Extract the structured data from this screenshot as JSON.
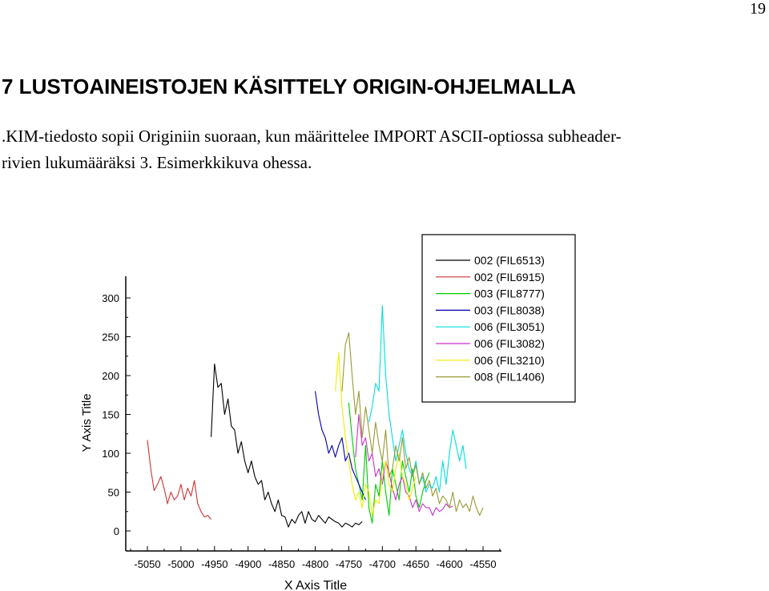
{
  "page": {
    "number": "19",
    "heading": "7  LUSTOAINEISTOJEN KÄSITTELY ORIGIN-OHJELMALLA",
    "paragraph_line1": ".KIM-tiedosto sopii Originiin suoraan, kun määrittelee IMPORT ASCII-optiossa subheader-",
    "paragraph_line2": "rivien lukumääräksi 3. Esimerkkikuva ohessa."
  },
  "chart_data": {
    "type": "line",
    "title": "",
    "xlabel": "X Axis Title",
    "ylabel": "Y Axis Title",
    "xlim": [
      -5065,
      -4540
    ],
    "ylim": [
      -20,
      335
    ],
    "x_ticks": [
      -5050,
      -5000,
      -4950,
      -4900,
      -4850,
      -4800,
      -4750,
      -4700,
      -4650,
      -4600,
      -4550
    ],
    "y_ticks": [
      0,
      50,
      100,
      150,
      200,
      250,
      300
    ],
    "legend_position": "top-right",
    "series": [
      {
        "name": "002 (FIL6513)",
        "color": "#000000",
        "x": [
          -4955,
          -4950,
          -4945,
          -4940,
          -4935,
          -4930,
          -4925,
          -4920,
          -4915,
          -4910,
          -4905,
          -4900,
          -4895,
          -4890,
          -4885,
          -4880,
          -4875,
          -4870,
          -4865,
          -4860,
          -4855,
          -4850,
          -4845,
          -4840,
          -4835,
          -4830,
          -4825,
          -4820,
          -4815,
          -4810,
          -4805,
          -4800,
          -4795,
          -4790,
          -4785,
          -4780,
          -4775,
          -4770,
          -4765,
          -4760,
          -4755,
          -4750,
          -4745,
          -4740,
          -4735,
          -4730
        ],
        "values": [
          121,
          215,
          185,
          190,
          150,
          170,
          135,
          130,
          100,
          115,
          90,
          75,
          90,
          70,
          60,
          65,
          40,
          50,
          35,
          25,
          40,
          20,
          18,
          5,
          15,
          10,
          20,
          25,
          10,
          25,
          15,
          12,
          20,
          15,
          10,
          18,
          15,
          12,
          10,
          5,
          10,
          8,
          5,
          10,
          8,
          12
        ]
      },
      {
        "name": "002 (FIL6915)",
        "color": "#cc3333",
        "x": [
          -5050,
          -5045,
          -5040,
          -5035,
          -5030,
          -5025,
          -5020,
          -5015,
          -5010,
          -5005,
          -5000,
          -4995,
          -4990,
          -4985,
          -4980,
          -4975,
          -4970,
          -4965,
          -4960,
          -4955
        ],
        "values": [
          117,
          80,
          52,
          60,
          70,
          55,
          35,
          50,
          40,
          45,
          60,
          40,
          55,
          45,
          65,
          35,
          25,
          18,
          20,
          15
        ]
      },
      {
        "name": "003 (FIL8777)",
        "color": "#00cc00",
        "x": [
          -4750,
          -4745,
          -4740,
          -4735,
          -4730,
          -4725,
          -4720,
          -4715,
          -4710,
          -4705,
          -4700,
          -4695,
          -4690,
          -4685,
          -4680,
          -4675,
          -4670,
          -4665,
          -4660,
          -4655,
          -4650,
          -4645,
          -4640,
          -4635,
          -4630
        ],
        "values": [
          165,
          120,
          80,
          60,
          40,
          110,
          30,
          10,
          60,
          45,
          90,
          50,
          20,
          80,
          60,
          40,
          90,
          70,
          50,
          80,
          45,
          30,
          50,
          65,
          75
        ]
      },
      {
        "name": "003 (FIL8038)",
        "color": "#0000aa",
        "x": [
          -4800,
          -4795,
          -4790,
          -4785,
          -4780,
          -4775,
          -4770,
          -4765,
          -4760,
          -4755,
          -4750,
          -4745,
          -4740,
          -4735,
          -4730,
          -4725
        ],
        "values": [
          180,
          150,
          130,
          120,
          100,
          110,
          95,
          110,
          120,
          90,
          100,
          80,
          70,
          60,
          50,
          40
        ]
      },
      {
        "name": "006 (FIL3051)",
        "color": "#00dddd",
        "x": [
          -4720,
          -4715,
          -4710,
          -4705,
          -4700,
          -4695,
          -4690,
          -4685,
          -4680,
          -4675,
          -4670,
          -4665,
          -4660,
          -4655,
          -4650,
          -4645,
          -4640,
          -4635,
          -4630,
          -4625,
          -4620,
          -4615,
          -4610,
          -4605,
          -4600,
          -4595,
          -4590,
          -4585,
          -4580,
          -4575
        ],
        "values": [
          140,
          160,
          190,
          180,
          290,
          200,
          150,
          120,
          90,
          110,
          130,
          100,
          80,
          70,
          90,
          60,
          70,
          50,
          60,
          55,
          70,
          50,
          90,
          60,
          100,
          130,
          110,
          90,
          110,
          80
        ]
      },
      {
        "name": "006 (FIL3082)",
        "color": "#cc33cc",
        "x": [
          -4740,
          -4735,
          -4730,
          -4725,
          -4720,
          -4715,
          -4710,
          -4705,
          -4700,
          -4695,
          -4690,
          -4685,
          -4680,
          -4675,
          -4670,
          -4665,
          -4660,
          -4655,
          -4650,
          -4645,
          -4640,
          -4635,
          -4630,
          -4625,
          -4620,
          -4615,
          -4610,
          -4605,
          -4600,
          -4595
        ],
        "values": [
          95,
          150,
          110,
          120,
          90,
          100,
          70,
          80,
          60,
          90,
          75,
          55,
          40,
          60,
          70,
          50,
          45,
          30,
          40,
          25,
          35,
          30,
          30,
          20,
          30,
          25,
          28,
          35,
          30,
          32
        ]
      },
      {
        "name": "006 (FIL3210)",
        "color": "#eeee00",
        "x": [
          -4770,
          -4765,
          -4760,
          -4755,
          -4750,
          -4745,
          -4740,
          -4735,
          -4730,
          -4725,
          -4720,
          -4715,
          -4710,
          -4705,
          -4700,
          -4695,
          -4690,
          -4685,
          -4680,
          -4675,
          -4670,
          -4665,
          -4660,
          -4655,
          -4650
        ],
        "values": [
          180,
          230,
          160,
          120,
          90,
          60,
          40,
          50,
          30,
          60,
          50,
          20,
          40,
          35,
          70,
          90,
          60,
          50,
          80,
          100,
          70,
          60,
          40,
          55,
          70
        ]
      },
      {
        "name": "008 (FIL1406)",
        "color": "#999933",
        "x": [
          -4760,
          -4755,
          -4750,
          -4745,
          -4740,
          -4735,
          -4730,
          -4725,
          -4720,
          -4715,
          -4710,
          -4705,
          -4700,
          -4695,
          -4690,
          -4685,
          -4680,
          -4675,
          -4670,
          -4665,
          -4660,
          -4655,
          -4650,
          -4645,
          -4640,
          -4635,
          -4630,
          -4625,
          -4620,
          -4615,
          -4610,
          -4605,
          -4600,
          -4595,
          -4590,
          -4585,
          -4580,
          -4575,
          -4570,
          -4565,
          -4560,
          -4555,
          -4550
        ],
        "values": [
          180,
          240,
          255,
          200,
          150,
          180,
          120,
          160,
          130,
          100,
          140,
          110,
          90,
          130,
          70,
          80,
          110,
          90,
          120,
          80,
          95,
          70,
          85,
          60,
          75,
          55,
          65,
          45,
          55,
          35,
          45,
          40,
          30,
          50,
          25,
          40,
          30,
          35,
          25,
          45,
          30,
          20,
          30
        ]
      }
    ]
  }
}
